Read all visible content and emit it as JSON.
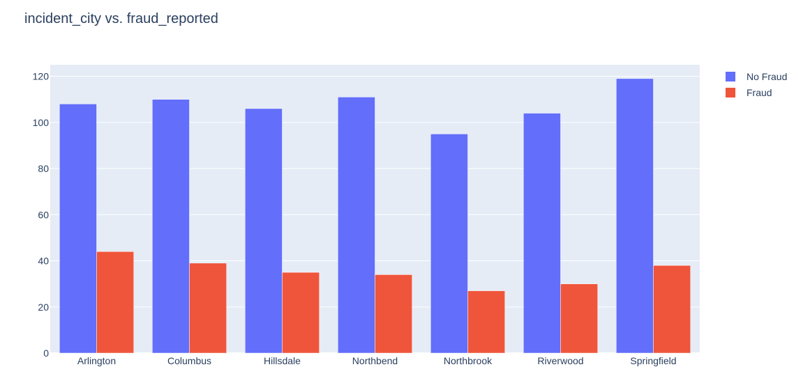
{
  "chart_data": {
    "type": "bar",
    "title": "incident_city vs. fraud_reported",
    "xlabel": "",
    "ylabel": "",
    "categories": [
      "Arlington",
      "Columbus",
      "Hillsdale",
      "Northbend",
      "Northbrook",
      "Riverwood",
      "Springfield"
    ],
    "series": [
      {
        "name": "No Fraud",
        "color": "#636efa",
        "values": [
          108,
          110,
          106,
          111,
          95,
          104,
          119
        ]
      },
      {
        "name": "Fraud",
        "color": "#ef553b",
        "values": [
          44,
          39,
          35,
          34,
          27,
          30,
          38
        ]
      }
    ],
    "ylim": [
      0,
      125
    ],
    "yticks": [
      0,
      20,
      40,
      60,
      80,
      100,
      120
    ],
    "grid": true,
    "legend_position": "top-right",
    "plot_background": "#e5ecf6"
  }
}
